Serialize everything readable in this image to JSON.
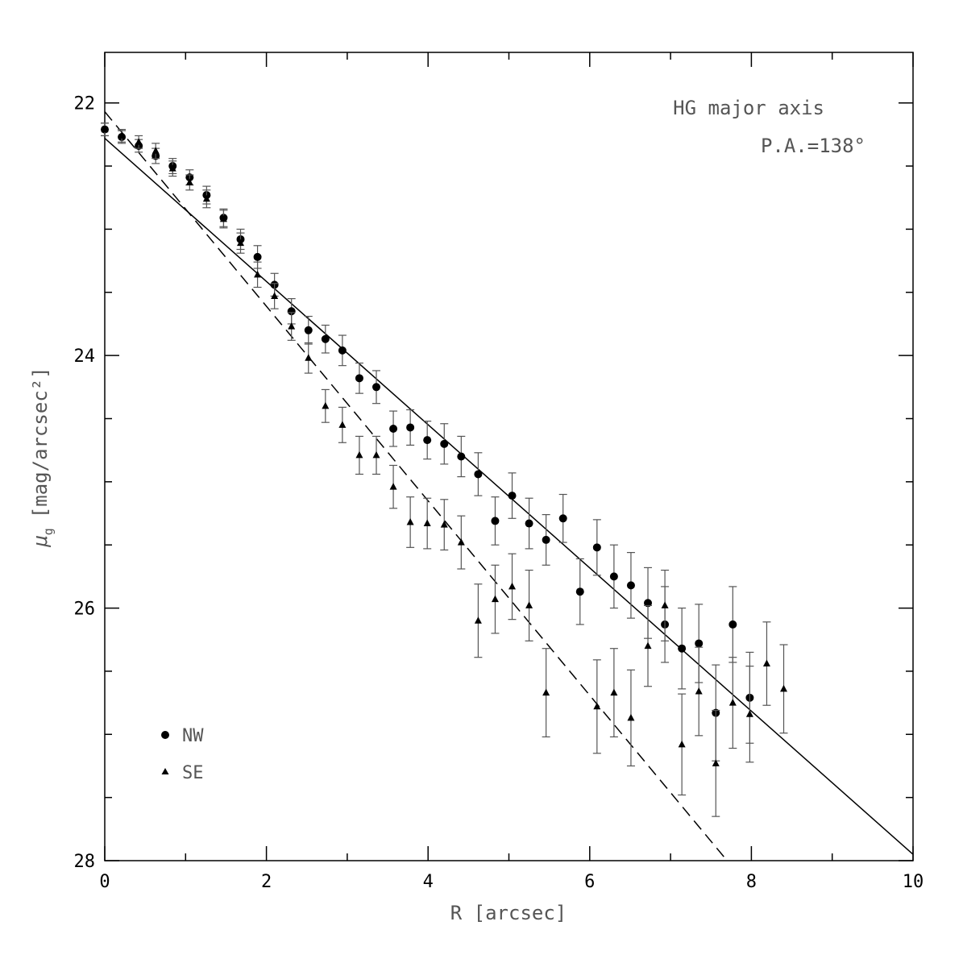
{
  "chart_data": {
    "type": "scatter",
    "xlabel": "R [arcsec]",
    "ylabel_prefix": "μ",
    "ylabel_sub": "g",
    "ylabel_units": "[mag/arcsec²]",
    "xlim": [
      0,
      10
    ],
    "ylim": [
      28,
      21.6
    ],
    "y_inverted": true,
    "x_ticks": [
      0,
      2,
      4,
      6,
      8,
      10
    ],
    "x_tick_labels": [
      "0",
      "2",
      "4",
      "6",
      "8",
      "10"
    ],
    "y_ticks": [
      22,
      24,
      26,
      28
    ],
    "y_tick_labels": [
      "22",
      "24",
      "26",
      "28"
    ],
    "grid": false,
    "legend_position": "bottom-left",
    "annotations": [
      "HG major axis",
      "P.A.=138°"
    ],
    "series": [
      {
        "name": "NW",
        "marker": "circle",
        "points": [
          {
            "x": 0.0,
            "y": 22.21,
            "err": 0.05
          },
          {
            "x": 0.21,
            "y": 22.27,
            "err": 0.05
          },
          {
            "x": 0.42,
            "y": 22.34,
            "err": 0.05
          },
          {
            "x": 0.63,
            "y": 22.42,
            "err": 0.06
          },
          {
            "x": 0.84,
            "y": 22.5,
            "err": 0.06
          },
          {
            "x": 1.05,
            "y": 22.59,
            "err": 0.06
          },
          {
            "x": 1.26,
            "y": 22.73,
            "err": 0.07
          },
          {
            "x": 1.47,
            "y": 22.91,
            "err": 0.07
          },
          {
            "x": 1.68,
            "y": 23.08,
            "err": 0.08
          },
          {
            "x": 1.89,
            "y": 23.22,
            "err": 0.09
          },
          {
            "x": 2.1,
            "y": 23.44,
            "err": 0.09
          },
          {
            "x": 2.31,
            "y": 23.65,
            "err": 0.1
          },
          {
            "x": 2.52,
            "y": 23.8,
            "err": 0.11
          },
          {
            "x": 2.73,
            "y": 23.87,
            "err": 0.11
          },
          {
            "x": 2.94,
            "y": 23.96,
            "err": 0.12
          },
          {
            "x": 3.15,
            "y": 24.18,
            "err": 0.12
          },
          {
            "x": 3.36,
            "y": 24.25,
            "err": 0.13
          },
          {
            "x": 3.57,
            "y": 24.58,
            "err": 0.14
          },
          {
            "x": 3.78,
            "y": 24.57,
            "err": 0.14
          },
          {
            "x": 3.99,
            "y": 24.67,
            "err": 0.15
          },
          {
            "x": 4.2,
            "y": 24.7,
            "err": 0.16
          },
          {
            "x": 4.41,
            "y": 24.8,
            "err": 0.16
          },
          {
            "x": 4.62,
            "y": 24.94,
            "err": 0.17
          },
          {
            "x": 4.83,
            "y": 25.31,
            "err": 0.19
          },
          {
            "x": 5.04,
            "y": 25.11,
            "err": 0.18
          },
          {
            "x": 5.25,
            "y": 25.33,
            "err": 0.2
          },
          {
            "x": 5.46,
            "y": 25.46,
            "err": 0.2
          },
          {
            "x": 5.67,
            "y": 25.29,
            "err": 0.19
          },
          {
            "x": 5.88,
            "y": 25.87,
            "err": 0.26
          },
          {
            "x": 6.09,
            "y": 25.52,
            "err": 0.22
          },
          {
            "x": 6.3,
            "y": 25.75,
            "err": 0.25
          },
          {
            "x": 6.51,
            "y": 25.82,
            "err": 0.26
          },
          {
            "x": 6.72,
            "y": 25.96,
            "err": 0.28
          },
          {
            "x": 6.93,
            "y": 26.13,
            "err": 0.3
          },
          {
            "x": 7.14,
            "y": 26.32,
            "err": 0.32
          },
          {
            "x": 7.35,
            "y": 26.28,
            "err": 0.31
          },
          {
            "x": 7.56,
            "y": 26.83,
            "err": 0.38
          },
          {
            "x": 7.77,
            "y": 26.13,
            "err": 0.3
          },
          {
            "x": 7.98,
            "y": 26.71,
            "err": 0.36
          }
        ]
      },
      {
        "name": "SE",
        "marker": "triangle",
        "points": [
          {
            "x": 0.0,
            "y": 22.21,
            "err": 0.05
          },
          {
            "x": 0.21,
            "y": 22.26,
            "err": 0.05
          },
          {
            "x": 0.42,
            "y": 22.31,
            "err": 0.05
          },
          {
            "x": 0.63,
            "y": 22.38,
            "err": 0.06
          },
          {
            "x": 0.84,
            "y": 22.52,
            "err": 0.06
          },
          {
            "x": 1.05,
            "y": 22.63,
            "err": 0.06
          },
          {
            "x": 1.26,
            "y": 22.76,
            "err": 0.07
          },
          {
            "x": 1.47,
            "y": 22.92,
            "err": 0.07
          },
          {
            "x": 1.68,
            "y": 23.11,
            "err": 0.08
          },
          {
            "x": 1.89,
            "y": 23.36,
            "err": 0.1
          },
          {
            "x": 2.1,
            "y": 23.53,
            "err": 0.1
          },
          {
            "x": 2.31,
            "y": 23.77,
            "err": 0.11
          },
          {
            "x": 2.52,
            "y": 24.02,
            "err": 0.12
          },
          {
            "x": 2.73,
            "y": 24.4,
            "err": 0.13
          },
          {
            "x": 2.94,
            "y": 24.55,
            "err": 0.14
          },
          {
            "x": 3.15,
            "y": 24.79,
            "err": 0.15
          },
          {
            "x": 3.36,
            "y": 24.79,
            "err": 0.15
          },
          {
            "x": 3.57,
            "y": 25.04,
            "err": 0.17
          },
          {
            "x": 3.78,
            "y": 25.32,
            "err": 0.2
          },
          {
            "x": 3.99,
            "y": 25.33,
            "err": 0.2
          },
          {
            "x": 4.2,
            "y": 25.34,
            "err": 0.2
          },
          {
            "x": 4.41,
            "y": 25.48,
            "err": 0.21
          },
          {
            "x": 4.62,
            "y": 26.1,
            "err": 0.29
          },
          {
            "x": 4.83,
            "y": 25.93,
            "err": 0.27
          },
          {
            "x": 5.04,
            "y": 25.83,
            "err": 0.26
          },
          {
            "x": 5.25,
            "y": 25.98,
            "err": 0.28
          },
          {
            "x": 5.46,
            "y": 26.67,
            "err": 0.35
          },
          {
            "x": 6.09,
            "y": 26.78,
            "err": 0.37
          },
          {
            "x": 6.3,
            "y": 26.67,
            "err": 0.35
          },
          {
            "x": 6.51,
            "y": 26.87,
            "err": 0.38
          },
          {
            "x": 6.72,
            "y": 26.3,
            "err": 0.32
          },
          {
            "x": 6.93,
            "y": 25.98,
            "err": 0.28
          },
          {
            "x": 7.14,
            "y": 27.08,
            "err": 0.4
          },
          {
            "x": 7.35,
            "y": 26.66,
            "err": 0.35
          },
          {
            "x": 7.56,
            "y": 27.23,
            "err": 0.42
          },
          {
            "x": 7.77,
            "y": 26.75,
            "err": 0.36
          },
          {
            "x": 7.98,
            "y": 26.84,
            "err": 0.38
          },
          {
            "x": 8.19,
            "y": 26.44,
            "err": 0.33
          },
          {
            "x": 8.4,
            "y": 26.64,
            "err": 0.35
          }
        ]
      }
    ],
    "fit_lines": [
      {
        "style": "solid",
        "x": [
          0,
          10
        ],
        "y": [
          22.28,
          27.95
        ]
      },
      {
        "style": "dashed",
        "x": [
          0,
          7.7
        ],
        "y": [
          22.07,
          28.0
        ]
      }
    ]
  }
}
